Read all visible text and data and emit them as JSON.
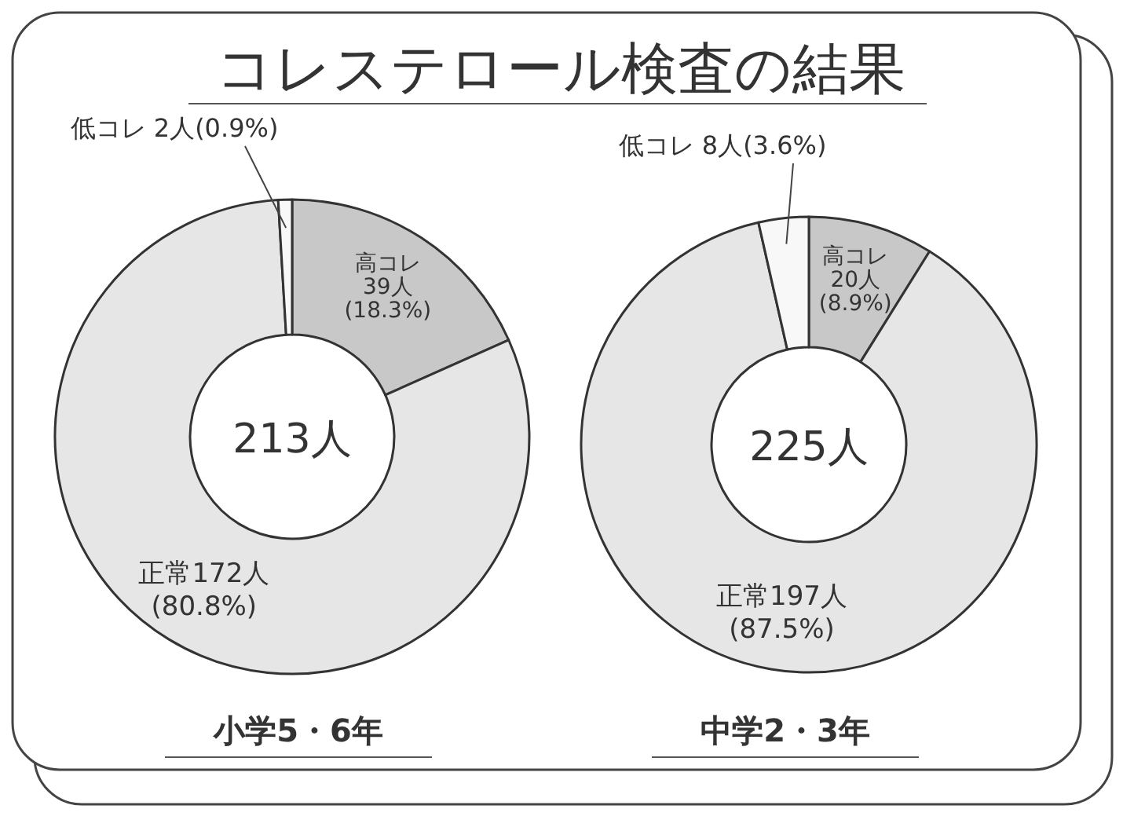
{
  "chart_data": [
    {
      "type": "donut",
      "title": "コレステロール検査の結果",
      "categories": [
        "高コレ",
        "正常",
        "低コレ"
      ],
      "values": [
        39,
        172,
        2
      ],
      "value_labels": [
        "39人(18.3%)",
        "172人(80.8%)",
        "2人(0.9%)"
      ],
      "colors": [
        "#c8c8c8",
        "#e6e6e6",
        "#f8f8f8"
      ],
      "annotations": [
        "213人"
      ],
      "xlabel": "小学5・6年"
    },
    {
      "type": "donut",
      "categories": [
        "高コレ",
        "正常",
        "低コレ"
      ],
      "values": [
        20,
        197,
        8
      ],
      "value_labels": [
        "20人(8.9%)",
        "197人(87.5%)",
        "8人(3.6%)"
      ],
      "colors": [
        "#c8c8c8",
        "#e6e6e6",
        "#f8f8f8"
      ],
      "annotations": [
        "225人"
      ],
      "xlabel": "中学2・3年"
    }
  ]
}
